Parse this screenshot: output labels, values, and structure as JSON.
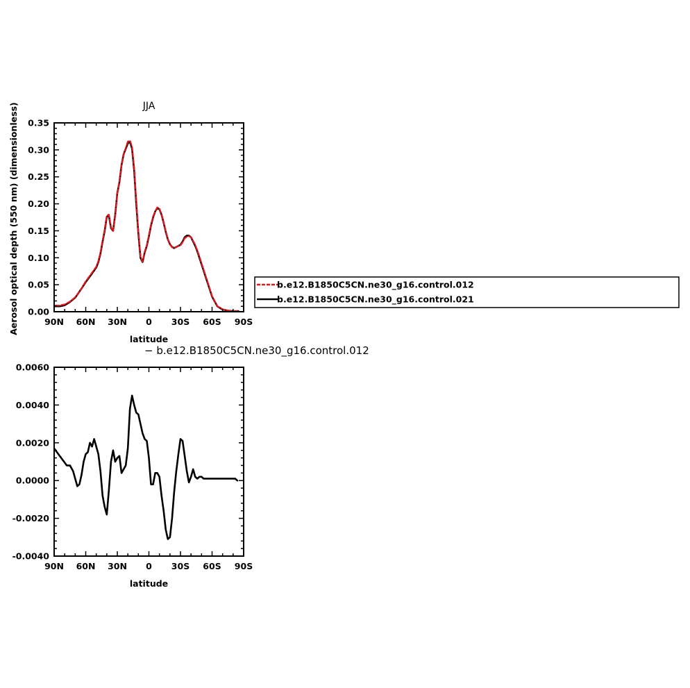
{
  "chart_data": [
    {
      "type": "line",
      "title": "JJA",
      "xlabel": "latitude",
      "ylabel": "Aerosol optical depth (550 nm) (dimensionless)",
      "xlim": [
        90,
        -90
      ],
      "ylim": [
        0,
        0.35
      ],
      "x_ticks": [
        90,
        60,
        30,
        0,
        -30,
        -60,
        -90
      ],
      "x_tick_labels": [
        "90N",
        "60N",
        "30N",
        "0",
        "30S",
        "60S",
        "90S"
      ],
      "y_ticks": [
        0,
        0.05,
        0.1,
        0.15,
        0.2,
        0.25,
        0.3,
        0.35
      ],
      "y_tick_labels": [
        "0.00",
        "0.05",
        "0.10",
        "0.15",
        "0.20",
        "0.25",
        "0.30",
        "0.35"
      ],
      "legend": {
        "placement": "right",
        "entries": [
          {
            "label": "b.e12.B1850C5CN.ne30_g16.control.012",
            "color": "#e8141b",
            "dash": true
          },
          {
            "label": "b.e12.B1850C5CN.ne30_g16.control.021",
            "color": "#000000",
            "dash": false
          }
        ]
      },
      "series": [
        {
          "name": "b.e12.B1850C5CN.ne30_g16.control.021",
          "color": "#000000",
          "x": [
            89,
            85,
            80,
            75,
            70,
            65,
            60,
            55,
            50,
            48,
            46,
            44,
            42,
            40,
            38,
            36,
            34,
            32,
            30,
            28,
            26,
            24,
            22,
            20,
            18,
            16,
            14,
            12,
            10,
            8,
            6,
            4,
            2,
            0,
            -2,
            -4,
            -6,
            -8,
            -10,
            -12,
            -14,
            -16,
            -18,
            -20,
            -22,
            -24,
            -26,
            -28,
            -30,
            -32,
            -34,
            -36,
            -38,
            -40,
            -42,
            -44,
            -46,
            -48,
            -50,
            -55,
            -60,
            -65,
            -70,
            -75,
            -80,
            -85
          ],
          "y": [
            0.01,
            0.01,
            0.012,
            0.018,
            0.026,
            0.04,
            0.055,
            0.068,
            0.082,
            0.092,
            0.108,
            0.13,
            0.15,
            0.176,
            0.178,
            0.155,
            0.15,
            0.18,
            0.22,
            0.24,
            0.272,
            0.292,
            0.302,
            0.312,
            0.315,
            0.302,
            0.262,
            0.2,
            0.145,
            0.1,
            0.092,
            0.11,
            0.122,
            0.14,
            0.16,
            0.175,
            0.186,
            0.192,
            0.19,
            0.18,
            0.165,
            0.148,
            0.134,
            0.125,
            0.12,
            0.118,
            0.12,
            0.122,
            0.124,
            0.13,
            0.138,
            0.141,
            0.141,
            0.138,
            0.13,
            0.122,
            0.112,
            0.1,
            0.088,
            0.058,
            0.028,
            0.01,
            0.004,
            0.002,
            0.001,
            0.001
          ]
        },
        {
          "name": "b.e12.B1850C5CN.ne30_g16.control.012",
          "color": "#e8141b",
          "x": [
            89,
            85,
            80,
            75,
            70,
            65,
            60,
            55,
            50,
            48,
            46,
            44,
            42,
            40,
            38,
            36,
            34,
            32,
            30,
            28,
            26,
            24,
            22,
            20,
            18,
            16,
            14,
            12,
            10,
            8,
            6,
            4,
            2,
            0,
            -2,
            -4,
            -6,
            -8,
            -10,
            -12,
            -14,
            -16,
            -18,
            -20,
            -22,
            -24,
            -26,
            -28,
            -30,
            -32,
            -34,
            -36,
            -38,
            -40,
            -42,
            -44,
            -46,
            -48,
            -50,
            -55,
            -60,
            -65,
            -70,
            -75,
            -80,
            -85
          ],
          "y": [
            0.0115,
            0.0115,
            0.0135,
            0.0188,
            0.0268,
            0.0397,
            0.0564,
            0.0696,
            0.0834,
            0.094,
            0.1099,
            0.132,
            0.152,
            0.1777,
            0.18,
            0.1565,
            0.1495,
            0.1787,
            0.2194,
            0.2412,
            0.273,
            0.2925,
            0.3035,
            0.3156,
            0.3171,
            0.3057,
            0.2665,
            0.2045,
            0.1487,
            0.1021,
            0.0925,
            0.1115,
            0.1228,
            0.142,
            0.1616,
            0.1762,
            0.1865,
            0.1935,
            0.1908,
            0.1805,
            0.1654,
            0.1482,
            0.1339,
            0.1248,
            0.1194,
            0.118,
            0.1197,
            0.122,
            0.1232,
            0.1285,
            0.1361,
            0.139,
            0.14,
            0.138,
            0.1312,
            0.124,
            0.1133,
            0.1021,
            0.0898,
            0.0596,
            0.0286,
            0.0101,
            0.0046,
            0.0019,
            0.0011,
            0.001
          ]
        }
      ]
    },
    {
      "type": "line",
      "title": "- b.e12.B1850C5CN.ne30_g16.control.012",
      "xlabel": "latitude",
      "ylabel": "",
      "xlim": [
        90,
        -90
      ],
      "ylim": [
        -0.004,
        0.006
      ],
      "x_ticks": [
        90,
        60,
        30,
        0,
        -30,
        -60,
        -90
      ],
      "x_tick_labels": [
        "90N",
        "60N",
        "30N",
        "0",
        "30S",
        "60S",
        "90S"
      ],
      "y_ticks": [
        -0.004,
        -0.002,
        0,
        0.002,
        0.004,
        0.006
      ],
      "y_tick_labels": [
        "-0.0040",
        "-0.0020",
        "0.0000",
        "0.0020",
        "0.0040",
        "0.0060"
      ],
      "series": [
        {
          "name": "",
          "color": "#000000",
          "x": [
            90,
            86,
            82,
            78,
            75,
            72,
            70,
            68,
            66,
            64,
            62,
            60,
            58,
            56,
            54,
            52,
            50,
            48,
            46,
            44,
            42,
            40,
            38,
            36,
            34,
            32,
            30,
            28,
            26,
            24,
            22,
            20,
            18,
            16,
            14,
            12,
            10,
            8,
            6,
            4,
            2,
            0,
            -2,
            -4,
            -6,
            -8,
            -10,
            -12,
            -14,
            -16,
            -18,
            -20,
            -22,
            -24,
            -26,
            -28,
            -30,
            -32,
            -34,
            -36,
            -38,
            -40,
            -42,
            -44,
            -46,
            -48,
            -50,
            -52,
            -54,
            -56,
            -58,
            -60,
            -62,
            -64,
            -66,
            -68,
            -70,
            -72,
            -74,
            -76,
            -78,
            -80,
            -82,
            -84
          ],
          "y": [
            0.0017,
            0.0014,
            0.0011,
            0.0008,
            0.0008,
            0.0005,
            0.0001,
            -0.0003,
            -0.0002,
            0.0003,
            0.001,
            0.0014,
            0.0015,
            0.002,
            0.0018,
            0.0022,
            0.0018,
            0.0014,
            0.0005,
            -0.0008,
            -0.0014,
            -0.0018,
            -0.0005,
            0.001,
            0.0016,
            0.001,
            0.0012,
            0.0013,
            0.0004,
            0.0006,
            0.0008,
            0.0017,
            0.0038,
            0.0045,
            0.004,
            0.0036,
            0.0035,
            0.003,
            0.0025,
            0.0022,
            0.0021,
            0.0012,
            -0.0002,
            -0.0002,
            0.0004,
            0.0004,
            0.0002,
            -0.0008,
            -0.0016,
            -0.0026,
            -0.0031,
            -0.003,
            -0.002,
            -0.0006,
            0.0005,
            0.0014,
            0.0022,
            0.0021,
            0.0013,
            0.0005,
            -0.0001,
            0.0002,
            0.0006,
            0.0002,
            0.0001,
            0.0002,
            0.0002,
            0.0001,
            0.0001,
            0.0001,
            0.0001,
            0.0001,
            0.0001,
            0.0001,
            0.0001,
            0.0001,
            0.0001,
            0.0001,
            0.0001,
            0.0001,
            0.0001,
            0.0001,
            0.0001,
            0.0
          ]
        }
      ]
    }
  ]
}
